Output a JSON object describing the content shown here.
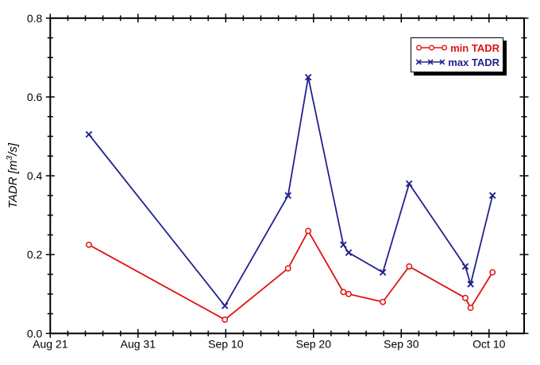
{
  "page": {
    "background": "#ffffff"
  },
  "chart_data": {
    "type": "line",
    "title": "",
    "xlabel": "",
    "ylabel": "TADR [m³/s]",
    "ylabel_parts": {
      "prefix": "TADR [m",
      "superscript": "3",
      "suffix": "/s]"
    },
    "x_axis": {
      "kind": "date",
      "range_days": [
        0,
        54
      ],
      "major_ticks": [
        {
          "day": 0,
          "label": "Aug 21"
        },
        {
          "day": 10,
          "label": "Aug 31"
        },
        {
          "day": 20,
          "label": "Sep 10"
        },
        {
          "day": 30,
          "label": "Sep 20"
        },
        {
          "day": 40,
          "label": "Sep 30"
        },
        {
          "day": 50,
          "label": "Oct 10"
        }
      ],
      "minor_tick_step_days": 2
    },
    "y_axis": {
      "range": [
        0,
        0.8
      ],
      "major_ticks": [
        {
          "value": 0.0,
          "label": "0.0"
        },
        {
          "value": 0.2,
          "label": "0.2"
        },
        {
          "value": 0.4,
          "label": "0.4"
        },
        {
          "value": 0.6,
          "label": "0.6"
        },
        {
          "value": 0.8,
          "label": "0.8"
        }
      ],
      "minor_tick_step": 0.05
    },
    "x_points": {
      "days_after_aug21": [
        4.4,
        19.9,
        27.1,
        29.4,
        33.4,
        34.0,
        37.9,
        40.9,
        47.3,
        47.9,
        50.4
      ],
      "approx_dates": [
        "Aug 25",
        "Sep 10",
        "Sep 17",
        "Sep 19",
        "Sep 23",
        "Sep 24",
        "Sep 28",
        "Oct 1",
        "Oct 7",
        "Oct 8",
        "Oct 10"
      ]
    },
    "series": [
      {
        "name": "min TADR",
        "color": "#e01212",
        "marker": "circle",
        "values": [
          0.225,
          0.035,
          0.165,
          0.26,
          0.105,
          0.1,
          0.08,
          0.17,
          0.09,
          0.065,
          0.155
        ]
      },
      {
        "name": "max TADR",
        "color": "#22228e",
        "marker": "x",
        "values": [
          0.505,
          0.07,
          0.35,
          0.65,
          0.225,
          0.205,
          0.155,
          0.38,
          0.17,
          0.125,
          0.35
        ]
      }
    ],
    "legend": {
      "position": "top-right",
      "entries": [
        "min TADR",
        "max TADR"
      ],
      "background": "#ffffff",
      "border_color": "#000000",
      "shadow_color": "#000000"
    },
    "frame": {
      "color": "#000000",
      "grid": false
    }
  }
}
